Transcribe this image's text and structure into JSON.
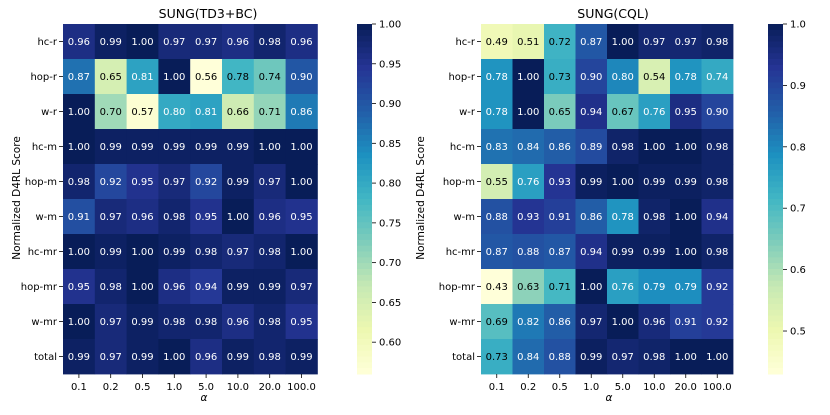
{
  "chart_data": [
    {
      "type": "heatmap",
      "title": "SUNG(TD3+BC)",
      "xlabel": "α",
      "ylabel": "Normalized D4RL Score",
      "x_categories": [
        "0.1",
        "0.2",
        "0.5",
        "1.0",
        "5.0",
        "10.0",
        "20.0",
        "100.0"
      ],
      "y_categories": [
        "hc-r",
        "hop-r",
        "w-r",
        "hc-m",
        "hop-m",
        "w-m",
        "hc-mr",
        "hop-mr",
        "w-mr",
        "total"
      ],
      "values": [
        [
          0.96,
          0.99,
          1.0,
          0.97,
          0.97,
          0.96,
          0.98,
          0.96
        ],
        [
          0.87,
          0.65,
          0.81,
          1.0,
          0.56,
          0.78,
          0.74,
          0.9
        ],
        [
          1.0,
          0.7,
          0.57,
          0.8,
          0.81,
          0.66,
          0.71,
          0.86
        ],
        [
          1.0,
          0.99,
          0.99,
          0.99,
          0.99,
          0.99,
          1.0,
          1.0
        ],
        [
          0.98,
          0.92,
          0.95,
          0.97,
          0.92,
          0.99,
          0.97,
          1.0
        ],
        [
          0.91,
          0.97,
          0.96,
          0.98,
          0.95,
          1.0,
          0.96,
          0.95
        ],
        [
          1.0,
          0.99,
          1.0,
          0.99,
          0.98,
          0.97,
          0.98,
          1.0
        ],
        [
          0.95,
          0.98,
          1.0,
          0.96,
          0.94,
          0.99,
          0.99,
          0.97
        ],
        [
          1.0,
          0.97,
          0.99,
          0.98,
          0.98,
          0.96,
          0.98,
          0.95
        ],
        [
          0.99,
          0.97,
          0.99,
          1.0,
          0.96,
          0.99,
          0.98,
          0.99
        ]
      ],
      "colorbar": {
        "min": 0.56,
        "max": 1.0,
        "ticks": [
          "0.60",
          "0.65",
          "0.70",
          "0.75",
          "0.80",
          "0.85",
          "0.90",
          "0.95",
          "1.00"
        ],
        "colormap": "YlGnBu"
      }
    },
    {
      "type": "heatmap",
      "title": "SUNG(CQL)",
      "xlabel": "α",
      "ylabel": "Normalized D4RL Score",
      "x_categories": [
        "0.1",
        "0.2",
        "0.5",
        "1.0",
        "5.0",
        "10.0",
        "20.0",
        "100.0"
      ],
      "y_categories": [
        "hc-r",
        "hop-r",
        "w-r",
        "hc-m",
        "hop-m",
        "w-m",
        "hc-mr",
        "hop-mr",
        "w-mr",
        "total"
      ],
      "values": [
        [
          0.49,
          0.51,
          0.72,
          0.87,
          1.0,
          0.97,
          0.97,
          0.98
        ],
        [
          0.78,
          1.0,
          0.73,
          0.9,
          0.8,
          0.54,
          0.78,
          0.74
        ],
        [
          0.78,
          1.0,
          0.65,
          0.94,
          0.67,
          0.76,
          0.95,
          0.9
        ],
        [
          0.83,
          0.84,
          0.86,
          0.89,
          0.98,
          1.0,
          1.0,
          0.98
        ],
        [
          0.55,
          0.76,
          0.93,
          0.99,
          1.0,
          0.99,
          0.99,
          0.98
        ],
        [
          0.88,
          0.93,
          0.91,
          0.86,
          0.78,
          0.98,
          1.0,
          0.94
        ],
        [
          0.87,
          0.88,
          0.87,
          0.94,
          0.99,
          0.99,
          1.0,
          0.98
        ],
        [
          0.43,
          0.63,
          0.71,
          1.0,
          0.76,
          0.79,
          0.79,
          0.92
        ],
        [
          0.69,
          0.82,
          0.86,
          0.97,
          1.0,
          0.96,
          0.91,
          0.92
        ],
        [
          0.73,
          0.84,
          0.88,
          0.99,
          0.97,
          0.98,
          1.0,
          1.0
        ]
      ],
      "colorbar": {
        "min": 0.43,
        "max": 1.0,
        "ticks": [
          "0.5",
          "0.6",
          "0.7",
          "0.8",
          "0.9",
          "1.0"
        ],
        "colormap": "YlGnBu"
      }
    }
  ]
}
